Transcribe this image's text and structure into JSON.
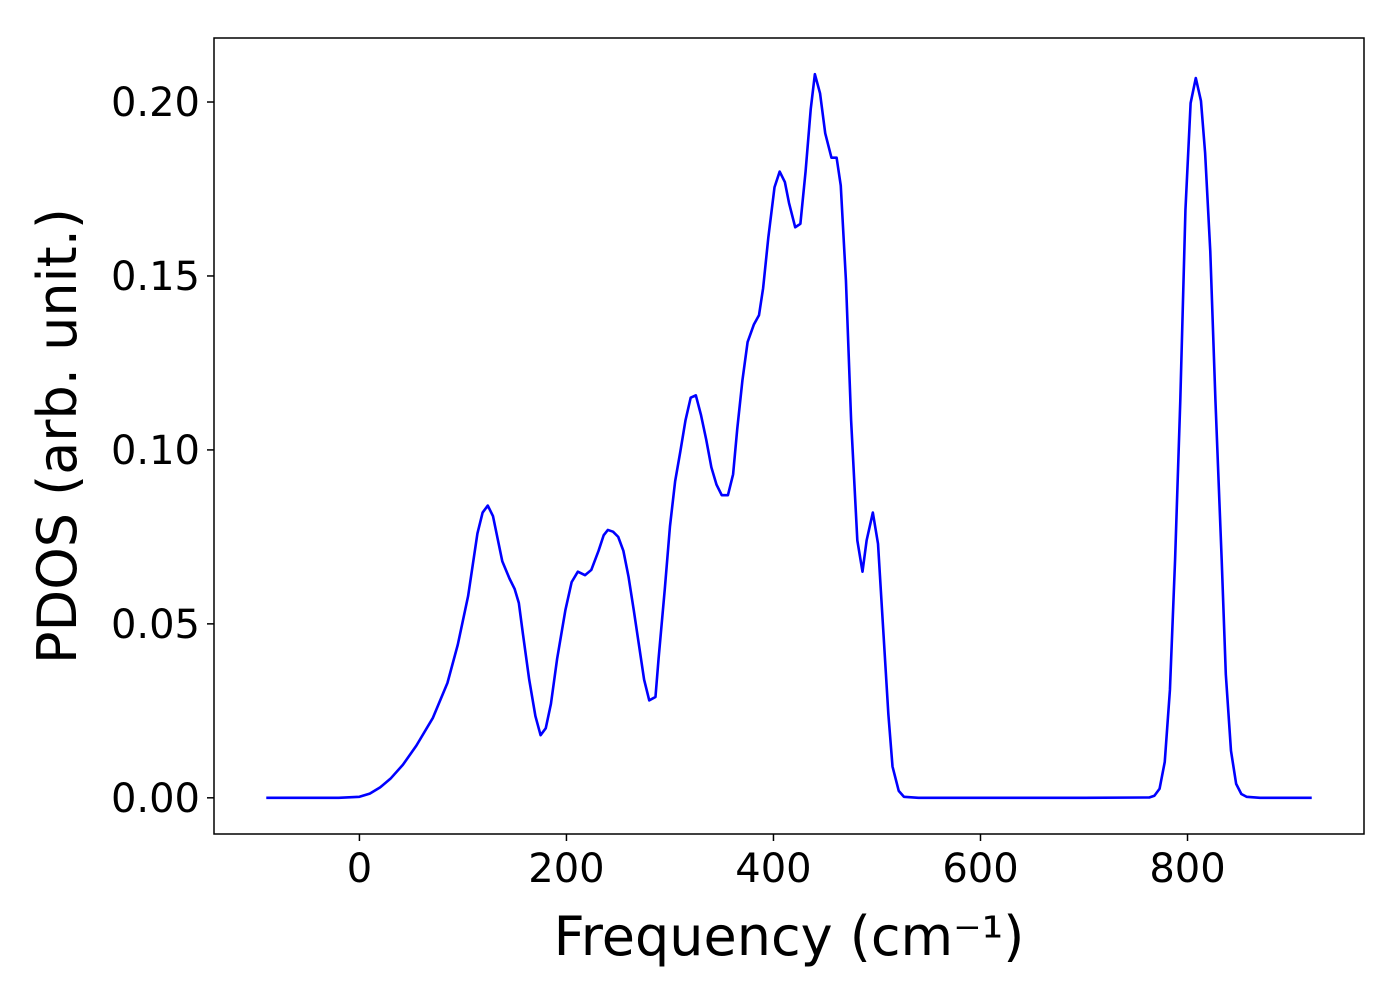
{
  "chart_data": {
    "type": "line",
    "xlabel": "Frequency (cm⁻¹)",
    "ylabel": "PDOS (arb. unit.)",
    "xlim": [
      -140.5,
      970.5
    ],
    "ylim": [
      -0.0104,
      0.2184
    ],
    "xticks": [
      0,
      200,
      400,
      600,
      800
    ],
    "yticks": [
      {
        "value": 0,
        "label": "0.00"
      },
      {
        "value": 0.05,
        "label": "0.05"
      },
      {
        "value": 0.1,
        "label": "0.10"
      },
      {
        "value": 0.15,
        "label": "0.15"
      },
      {
        "value": 0.2,
        "label": "0.20"
      }
    ],
    "grid": false,
    "x": [
      -90,
      -50,
      -20,
      0,
      10,
      20,
      30,
      42,
      55,
      71,
      85,
      95,
      105,
      114,
      119,
      124,
      129,
      138,
      145,
      150,
      154,
      158,
      164,
      170,
      175,
      180,
      185,
      191,
      199,
      205,
      211,
      218,
      224,
      231,
      236,
      240,
      245,
      250,
      255,
      260,
      265,
      270,
      275,
      280,
      286,
      289,
      295,
      300,
      305,
      310,
      315,
      320,
      325,
      330,
      335,
      340,
      345,
      350,
      356,
      361,
      365,
      370,
      375,
      381,
      386,
      390,
      395,
      401,
      406,
      411,
      415,
      421,
      426,
      431,
      436,
      440,
      445,
      450,
      456,
      461,
      465,
      470,
      475,
      481,
      486,
      490,
      496,
      501,
      506,
      511,
      515,
      521,
      526,
      540,
      600,
      700,
      763,
      768,
      773,
      778,
      783,
      788,
      793,
      798,
      803,
      808,
      813,
      817,
      822,
      827,
      833,
      837,
      842,
      847,
      852,
      857,
      870,
      920
    ],
    "series": [
      {
        "name": "PDOS",
        "color": "#0000ff",
        "values": [
          0,
          0,
          0,
          0.0003,
          0.0012,
          0.003,
          0.0055,
          0.0095,
          0.015,
          0.023,
          0.033,
          0.044,
          0.058,
          0.076,
          0.082,
          0.084,
          0.081,
          0.068,
          0.063,
          0.06,
          0.056,
          0.047,
          0.034,
          0.0235,
          0.018,
          0.02,
          0.027,
          0.04,
          0.054,
          0.062,
          0.065,
          0.064,
          0.0655,
          0.071,
          0.0755,
          0.077,
          0.0765,
          0.075,
          0.071,
          0.0635,
          0.054,
          0.044,
          0.034,
          0.028,
          0.029,
          0.04,
          0.06,
          0.078,
          0.091,
          0.0995,
          0.1085,
          0.115,
          0.1157,
          0.11,
          0.103,
          0.095,
          0.09,
          0.087,
          0.087,
          0.093,
          0.106,
          0.12,
          0.131,
          0.136,
          0.1387,
          0.1465,
          0.161,
          0.1755,
          0.18,
          0.177,
          0.171,
          0.164,
          0.165,
          0.18,
          0.198,
          0.208,
          0.2025,
          0.191,
          0.184,
          0.184,
          0.176,
          0.1487,
          0.1085,
          0.074,
          0.065,
          0.074,
          0.082,
          0.073,
          0.0485,
          0.024,
          0.009,
          0.002,
          0.0003,
          0,
          0,
          0,
          0.0001,
          0.0006,
          0.0026,
          0.0103,
          0.031,
          0.0685,
          0.114,
          0.169,
          0.1997,
          0.2069,
          0.2003,
          0.1854,
          0.157,
          0.114,
          0.0685,
          0.0355,
          0.0135,
          0.004,
          0.0011,
          0.0003,
          0,
          0
        ]
      }
    ]
  }
}
